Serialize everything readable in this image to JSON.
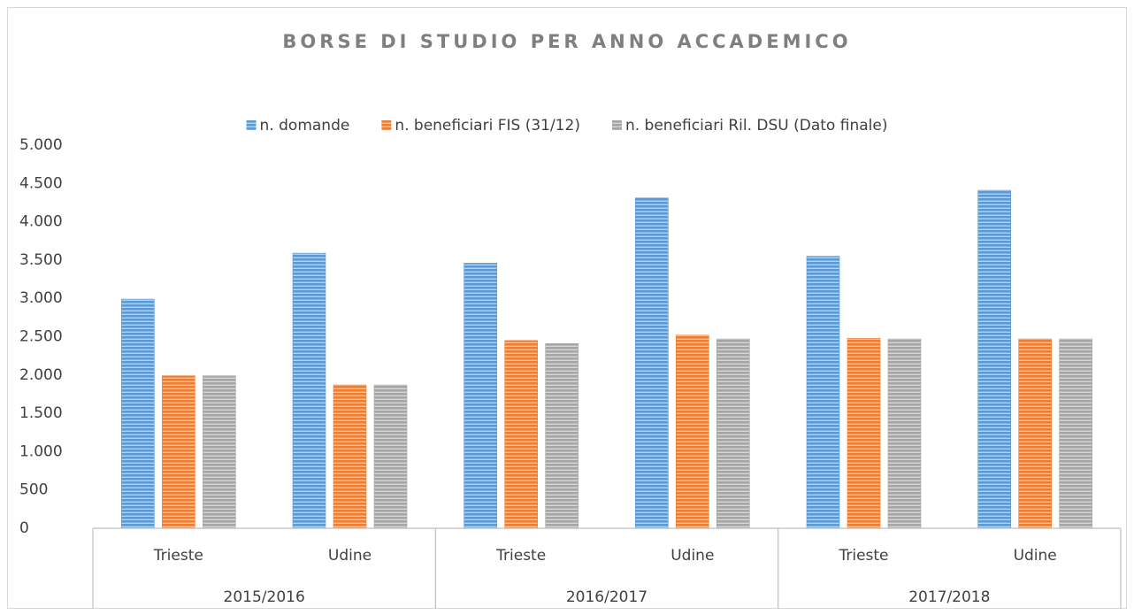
{
  "chart_data": {
    "type": "bar",
    "title": "BORSE DI STUDIO PER ANNO ACCADEMICO",
    "categories": [
      "Trieste",
      "Udine",
      "Trieste",
      "Udine",
      "Trieste",
      "Udine"
    ],
    "groups": [
      "2015/2016",
      "2016/2017",
      "2017/2018"
    ],
    "series": [
      {
        "name": "n. domande",
        "color": "#5b9bd5",
        "values": [
          2990,
          3590,
          3460,
          4310,
          3550,
          4410
        ]
      },
      {
        "name": "n. beneficiari FIS (31/12)",
        "color": "#ed7d31",
        "values": [
          1990,
          1870,
          2450,
          2520,
          2480,
          2470
        ]
      },
      {
        "name": "n. beneficiari Ril. DSU (Dato finale)",
        "color": "#a5a5a5",
        "values": [
          1990,
          1870,
          2410,
          2470,
          2470,
          2470
        ]
      }
    ],
    "ylim": [
      0,
      5000
    ],
    "yticks": [
      0,
      500,
      {
        "value": 1000,
        "label": "1.000"
      },
      {
        "value": 1500,
        "label": "1.500"
      },
      {
        "value": 2000,
        "label": "2.000"
      },
      {
        "value": 2500,
        "label": "2.500"
      },
      {
        "value": 3000,
        "label": "3.000"
      },
      {
        "value": 3500,
        "label": "3.500"
      },
      {
        "value": 4000,
        "label": "4.000"
      },
      {
        "value": 4500,
        "label": "4.500"
      },
      {
        "value": 5000,
        "label": "5.000"
      }
    ],
    "legend": "top",
    "grid": false
  }
}
